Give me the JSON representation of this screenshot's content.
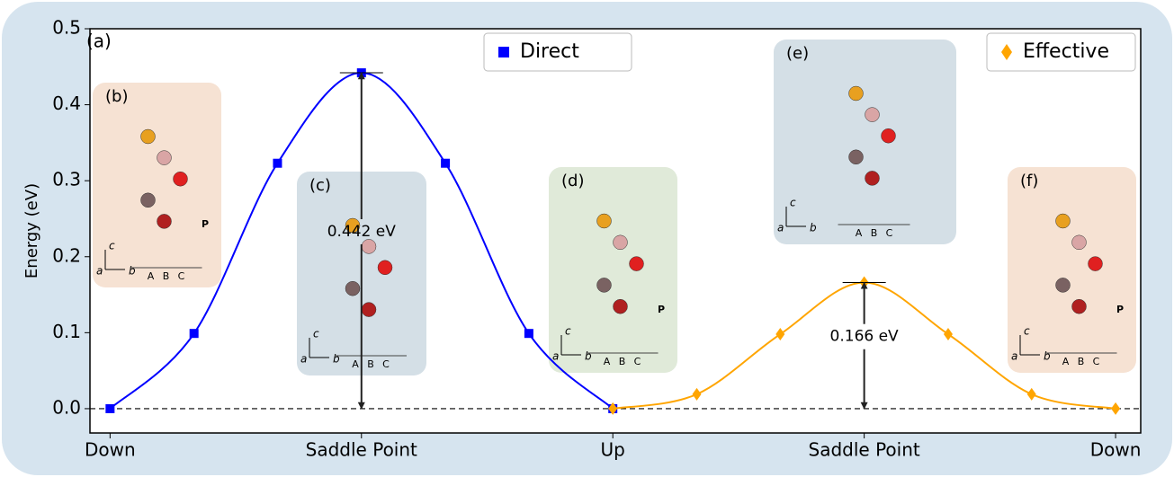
{
  "chart_data": {
    "type": "line",
    "ylabel": "Energy (eV)",
    "panel_label": "(a)",
    "xlim": [
      -0.04,
      2.05
    ],
    "ylim": [
      -0.032,
      0.5
    ],
    "xticks": [
      {
        "value": 0,
        "label": "Down"
      },
      {
        "value": 0.5,
        "label": "Saddle Point"
      },
      {
        "value": 1,
        "label": "Up"
      },
      {
        "value": 1.5,
        "label": "Saddle Point"
      },
      {
        "value": 2,
        "label": "Down"
      }
    ],
    "yticks": [
      {
        "value": 0,
        "label": "0.0"
      },
      {
        "value": 0.1,
        "label": "0.1"
      },
      {
        "value": 0.2,
        "label": "0.2"
      },
      {
        "value": 0.3,
        "label": "0.3"
      },
      {
        "value": 0.4,
        "label": "0.4"
      },
      {
        "value": 0.5,
        "label": "0.5"
      }
    ],
    "series": [
      {
        "name": "Direct",
        "color": "#0000ff",
        "marker": "square",
        "x": [
          0,
          0.167,
          0.333,
          0.5,
          0.667,
          0.833,
          1
        ],
        "values": [
          0,
          0.099,
          0.323,
          0.442,
          0.323,
          0.099,
          0
        ]
      },
      {
        "name": "Effective",
        "color": "#ffa500",
        "marker": "diamond",
        "x": [
          1,
          1.167,
          1.333,
          1.5,
          1.667,
          1.833,
          2
        ],
        "values": [
          0,
          0.019,
          0.098,
          0.166,
          0.098,
          0.019,
          0
        ]
      }
    ],
    "barriers": [
      {
        "series": 0,
        "point": 3,
        "label": "0.442 eV"
      },
      {
        "series": 1,
        "point": 3,
        "label": "0.166 eV"
      }
    ],
    "insets": [
      {
        "label": "(b)",
        "color": "#f6e2d3"
      },
      {
        "label": "(c)",
        "color": "#d4dfe6"
      },
      {
        "label": "(d)",
        "color": "#e0ead9"
      },
      {
        "label": "(e)",
        "color": "#d4dfe6"
      },
      {
        "label": "(f)",
        "color": "#f6e2d3"
      }
    ],
    "axis_letters": [
      "c",
      "a",
      "b"
    ],
    "stacking": [
      "A",
      "B",
      "C"
    ],
    "polarization": "P"
  }
}
